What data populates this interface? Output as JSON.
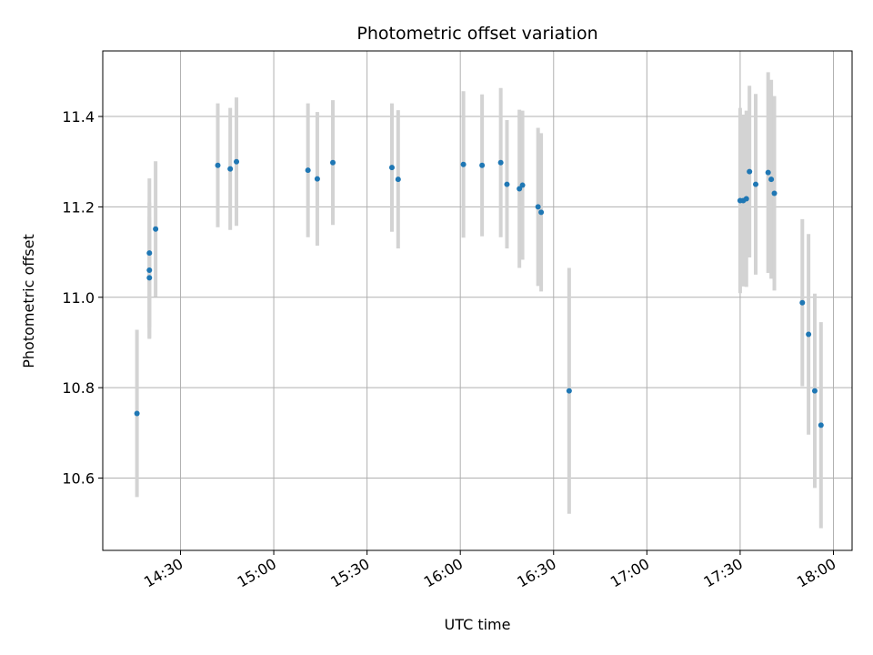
{
  "chart_data": {
    "type": "scatter",
    "title": "Photometric offset variation",
    "xlabel": "UTC time",
    "ylabel": "Photometric offset",
    "xlim": [
      "14:05",
      "18:06"
    ],
    "ylim": [
      10.44,
      11.545
    ],
    "x_ticks": [
      "14:30",
      "15:00",
      "15:30",
      "16:00",
      "16:30",
      "17:00",
      "17:30",
      "18:00"
    ],
    "y_ticks": [
      "10.6",
      "10.8",
      "11.0",
      "11.2",
      "11.4"
    ],
    "grid": true,
    "colors": {
      "point": "#1f77b4",
      "errorbar": "#d3d3d3",
      "grid": "#b0b0b0"
    },
    "points": [
      {
        "x": "14:16",
        "y": 10.743,
        "err": 0.185
      },
      {
        "x": "14:20",
        "y": 11.043,
        "err": 0.135
      },
      {
        "x": "14:20",
        "y": 11.06,
        "err": 0.15
      },
      {
        "x": "14:20",
        "y": 11.098,
        "err": 0.165
      },
      {
        "x": "14:22",
        "y": 11.151,
        "err": 0.15
      },
      {
        "x": "14:42",
        "y": 11.292,
        "err": 0.137
      },
      {
        "x": "14:46",
        "y": 11.284,
        "err": 0.135
      },
      {
        "x": "14:48",
        "y": 11.3,
        "err": 0.142
      },
      {
        "x": "15:11",
        "y": 11.281,
        "err": 0.148
      },
      {
        "x": "15:14",
        "y": 11.262,
        "err": 0.148
      },
      {
        "x": "15:19",
        "y": 11.298,
        "err": 0.138
      },
      {
        "x": "15:38",
        "y": 11.287,
        "err": 0.142
      },
      {
        "x": "15:40",
        "y": 11.261,
        "err": 0.153
      },
      {
        "x": "16:01",
        "y": 11.294,
        "err": 0.162
      },
      {
        "x": "16:07",
        "y": 11.292,
        "err": 0.157
      },
      {
        "x": "16:13",
        "y": 11.298,
        "err": 0.165
      },
      {
        "x": "16:15",
        "y": 11.25,
        "err": 0.142
      },
      {
        "x": "16:19",
        "y": 11.24,
        "err": 0.175
      },
      {
        "x": "16:20",
        "y": 11.248,
        "err": 0.165
      },
      {
        "x": "16:25",
        "y": 11.2,
        "err": 0.175
      },
      {
        "x": "16:26",
        "y": 11.188,
        "err": 0.175
      },
      {
        "x": "16:35",
        "y": 10.793,
        "err": 0.272
      },
      {
        "x": "17:30",
        "y": 11.214,
        "err": 0.205
      },
      {
        "x": "17:31",
        "y": 11.214,
        "err": 0.19
      },
      {
        "x": "17:32",
        "y": 11.218,
        "err": 0.195
      },
      {
        "x": "17:33",
        "y": 11.278,
        "err": 0.19
      },
      {
        "x": "17:35",
        "y": 11.25,
        "err": 0.2
      },
      {
        "x": "17:39",
        "y": 11.276,
        "err": 0.222
      },
      {
        "x": "17:40",
        "y": 11.261,
        "err": 0.22
      },
      {
        "x": "17:41",
        "y": 11.23,
        "err": 0.215
      },
      {
        "x": "17:50",
        "y": 10.988,
        "err": 0.185
      },
      {
        "x": "17:52",
        "y": 10.918,
        "err": 0.222
      },
      {
        "x": "17:54",
        "y": 10.793,
        "err": 0.215
      },
      {
        "x": "17:56",
        "y": 10.717,
        "err": 0.228
      }
    ]
  }
}
